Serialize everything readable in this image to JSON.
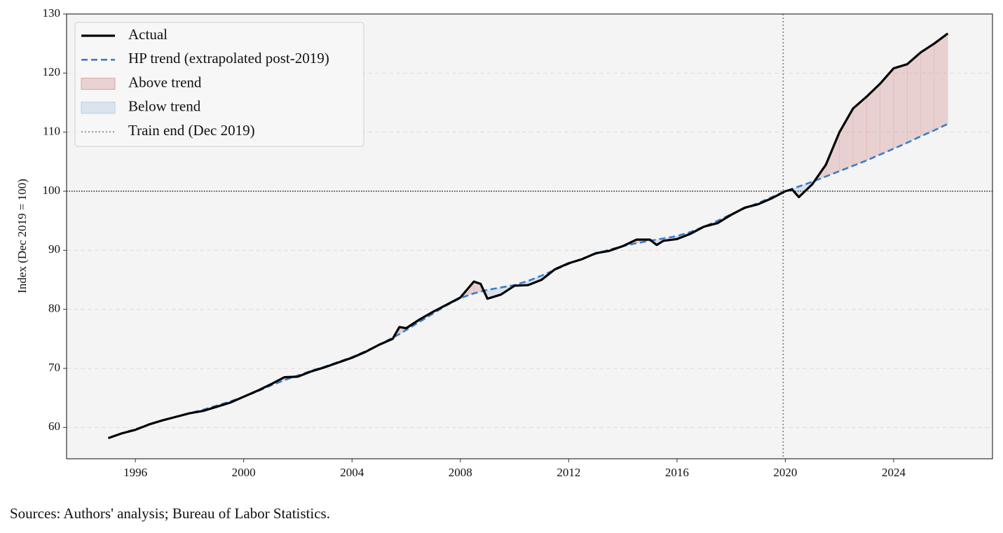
{
  "chart_data": {
    "type": "line",
    "y_label": "Index (Dec 2019 = 100)",
    "note": "Sources: Authors' analysis; Bureau of Labor Statistics.",
    "x": [
      1995.0,
      1995.5,
      1996.0,
      1996.5,
      1997.0,
      1997.5,
      1998.0,
      1998.5,
      1999.0,
      1999.5,
      2000.0,
      2000.5,
      2001.0,
      2001.5,
      2002.0,
      2002.5,
      2003.0,
      2003.5,
      2004.0,
      2004.5,
      2005.0,
      2005.5,
      2005.75,
      2006.0,
      2006.5,
      2007.0,
      2007.5,
      2008.0,
      2008.5,
      2008.75,
      2009.0,
      2009.5,
      2010.0,
      2010.5,
      2011.0,
      2011.5,
      2012.0,
      2012.5,
      2013.0,
      2013.5,
      2014.0,
      2014.5,
      2015.0,
      2015.25,
      2015.5,
      2016.0,
      2016.5,
      2017.0,
      2017.5,
      2018.0,
      2018.5,
      2019.0,
      2019.5,
      2020.0,
      2020.25,
      2020.5,
      2021.0,
      2021.5,
      2022.0,
      2022.5,
      2023.0,
      2023.5,
      2024.0,
      2024.5,
      2025.0,
      2025.5,
      2026.0
    ],
    "series": [
      {
        "name": "Actual",
        "color": "#000000",
        "style": "solid",
        "values": [
          58.2,
          59.0,
          59.6,
          60.5,
          61.2,
          61.8,
          62.4,
          62.8,
          63.5,
          64.2,
          65.2,
          66.2,
          67.3,
          68.5,
          68.6,
          69.5,
          70.2,
          71.0,
          71.8,
          72.8,
          74.0,
          75.0,
          77.0,
          76.8,
          78.3,
          79.6,
          80.8,
          82.0,
          84.7,
          84.3,
          81.8,
          82.5,
          84.0,
          84.1,
          85.0,
          86.8,
          87.8,
          88.5,
          89.5,
          89.9,
          90.7,
          91.8,
          91.8,
          90.9,
          91.6,
          91.9,
          92.8,
          94.0,
          94.6,
          96.0,
          97.2,
          97.8,
          98.8,
          100.0,
          100.3,
          99.0,
          101.2,
          104.5,
          110.0,
          114.0,
          116.0,
          118.2,
          120.8,
          121.5,
          123.5,
          125.0,
          126.7
        ]
      },
      {
        "name": "HP trend (extrapolated post-2019)",
        "color": "#3a7dc9",
        "style": "dashed",
        "values": [
          58.2,
          59.0,
          59.7,
          60.5,
          61.2,
          61.8,
          62.4,
          63.0,
          63.7,
          64.4,
          65.2,
          66.1,
          67.1,
          68.0,
          68.8,
          69.6,
          70.3,
          71.1,
          71.9,
          72.9,
          74.0,
          75.2,
          75.8,
          76.5,
          77.9,
          79.3,
          80.7,
          81.9,
          82.7,
          83.0,
          83.3,
          83.7,
          84.1,
          84.8,
          85.7,
          86.7,
          87.7,
          88.6,
          89.4,
          90.1,
          90.7,
          91.2,
          91.6,
          91.8,
          92.0,
          92.4,
          93.1,
          94.0,
          95.0,
          96.1,
          97.1,
          98.0,
          99.0,
          100.0,
          100.4,
          100.8,
          101.6,
          102.5,
          103.4,
          104.3,
          105.2,
          106.2,
          107.2,
          108.2,
          109.3,
          110.3,
          111.4
        ]
      }
    ],
    "fills": [
      {
        "name": "Above trend",
        "color": "#d9a3a3"
      },
      {
        "name": "Below trend",
        "color": "#b9cde3"
      }
    ],
    "vline": {
      "x": 2019.92,
      "name": "Train end (Dec 2019)",
      "color": "#777777"
    },
    "hline": {
      "y": 100,
      "color": "#000000"
    },
    "xlim": [
      1993.46,
      2027.65
    ],
    "ylim": [
      54.7,
      130
    ],
    "xticks": [
      1996,
      2000,
      2004,
      2008,
      2012,
      2016,
      2020,
      2024
    ],
    "yticks": [
      60,
      70,
      80,
      90,
      100,
      110,
      120,
      130
    ],
    "grid": "y",
    "legend": "upper left"
  }
}
